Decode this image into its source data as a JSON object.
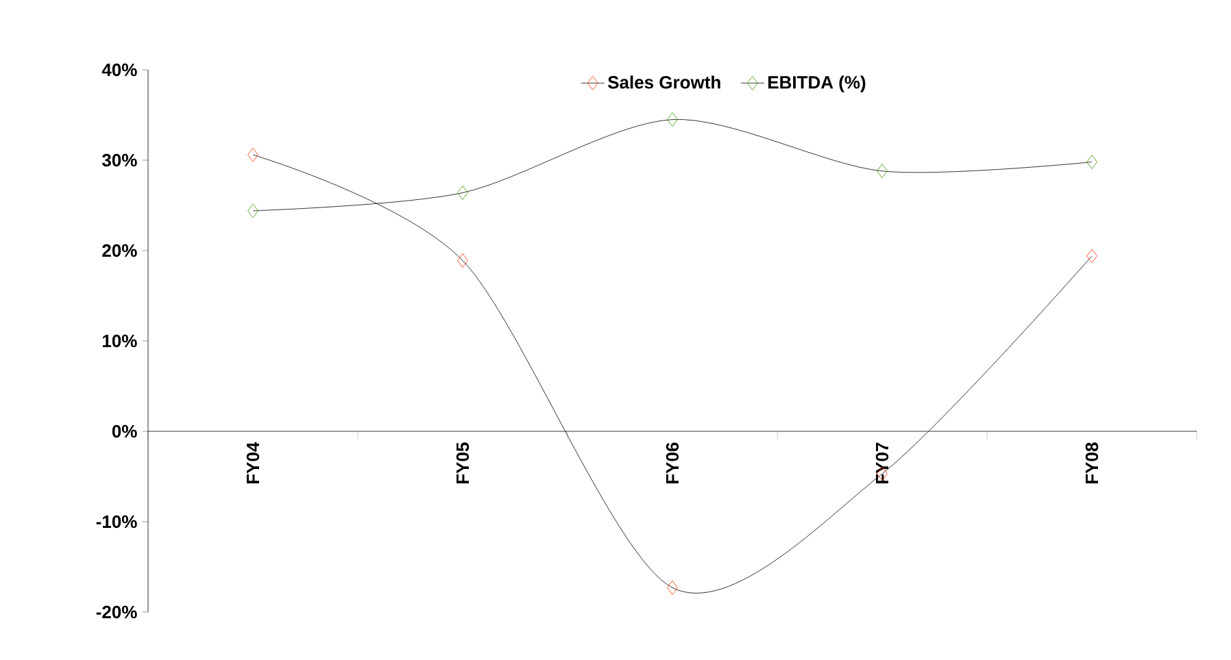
{
  "chart_data": {
    "type": "line",
    "categories": [
      "FY04",
      "FY05",
      "FY06",
      "FY07",
      "FY08"
    ],
    "series": [
      {
        "name": "Sales Growth",
        "color": "#ff3300",
        "values": [
          30.6,
          18.9,
          -17.3,
          -4.7,
          19.4
        ]
      },
      {
        "name": "EBITDA (%)",
        "color": "#339900",
        "values": [
          24.4,
          26.4,
          34.5,
          28.8,
          29.8
        ]
      }
    ],
    "ylim": [
      -20,
      40
    ],
    "yticks": [
      {
        "value": -20,
        "label": "-20%"
      },
      {
        "value": -10,
        "label": "-10%"
      },
      {
        "value": 0,
        "label": "0%"
      },
      {
        "value": 10,
        "label": "10%"
      },
      {
        "value": 20,
        "label": "20%"
      },
      {
        "value": 30,
        "label": "30%"
      },
      {
        "value": 40,
        "label": "40%"
      }
    ],
    "grid": false,
    "legend": "top",
    "marker": "diamond",
    "line_style": "solid"
  }
}
